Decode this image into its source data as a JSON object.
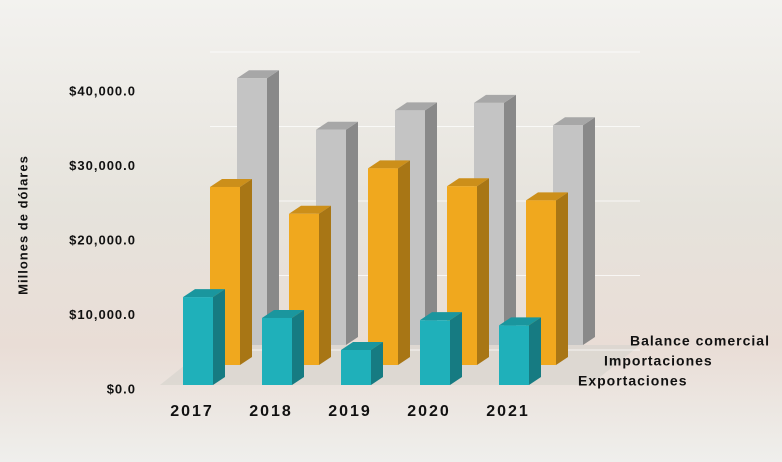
{
  "chart_data": {
    "type": "bar3d",
    "y_axis_label": "Millones de dólares",
    "categories": [
      "2017",
      "2018",
      "2019",
      "2020",
      "2021"
    ],
    "series": [
      {
        "name": "Exportaciones",
        "color": "#c4c4c4",
        "values": [
          35800,
          28900,
          31500,
          32500,
          29500
        ]
      },
      {
        "name": "Importaciones",
        "color": "#f0a81e",
        "values": [
          23900,
          20300,
          26400,
          24000,
          22100
        ]
      },
      {
        "name": "Balance comercial",
        "color": "#1fb0ba",
        "values": [
          11800,
          9000,
          4700,
          8700,
          8000
        ]
      }
    ],
    "ylim": [
      0,
      40000
    ],
    "yticks": [
      {
        "value": 0,
        "label": "$0.0"
      },
      {
        "value": 10000,
        "label": "$10,000.0"
      },
      {
        "value": 20000,
        "label": "$20,000.0"
      },
      {
        "value": 30000,
        "label": "$30,000.0"
      },
      {
        "value": 40000,
        "label": "$40,000.0"
      }
    ],
    "grid": true
  }
}
